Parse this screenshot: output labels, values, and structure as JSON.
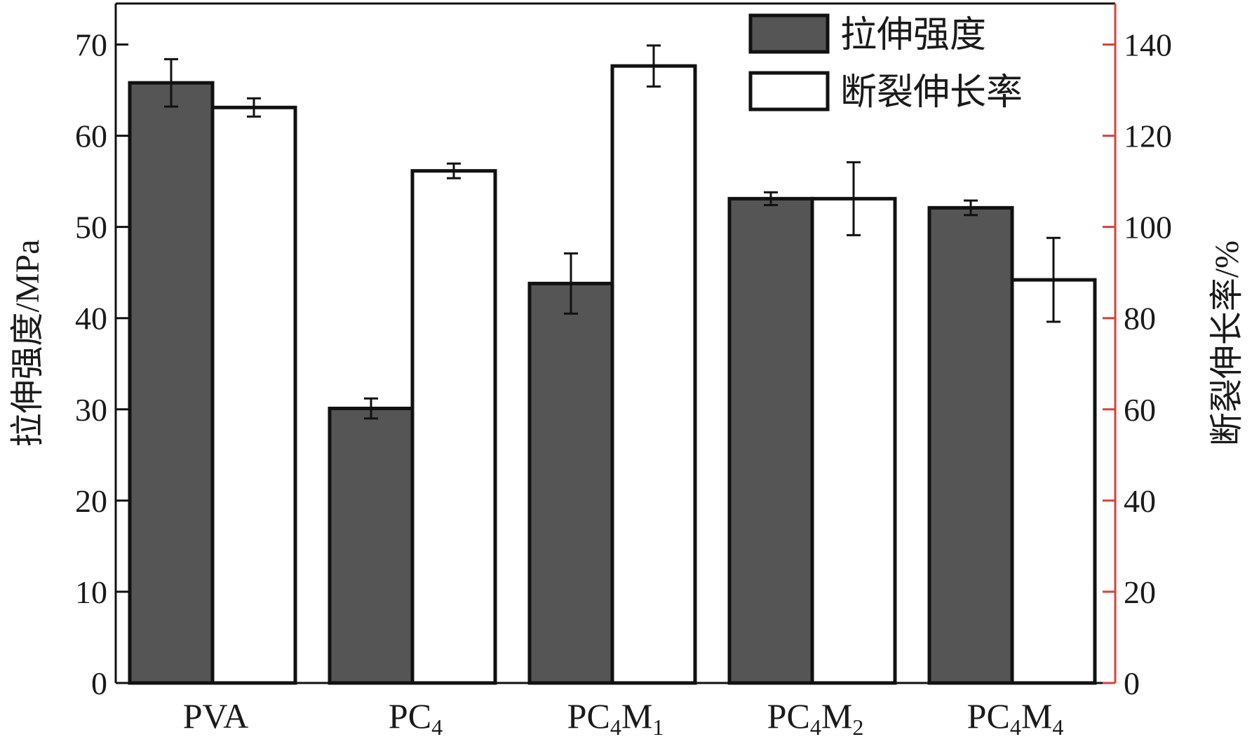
{
  "chart_data": {
    "type": "bar",
    "categories": [
      {
        "base": "PVA",
        "parts": [
          {
            "text": "PVA",
            "sub": false
          }
        ]
      },
      {
        "base": "PC4",
        "parts": [
          {
            "text": "PC",
            "sub": false
          },
          {
            "text": "4",
            "sub": true
          }
        ]
      },
      {
        "base": "PC4M1",
        "parts": [
          {
            "text": "PC",
            "sub": false
          },
          {
            "text": "4",
            "sub": true
          },
          {
            "text": "M",
            "sub": false
          },
          {
            "text": "1",
            "sub": true
          }
        ]
      },
      {
        "base": "PC4M2",
        "parts": [
          {
            "text": "PC",
            "sub": false
          },
          {
            "text": "4",
            "sub": true
          },
          {
            "text": "M",
            "sub": false
          },
          {
            "text": "2",
            "sub": true
          }
        ]
      },
      {
        "base": "PC4M4",
        "parts": [
          {
            "text": "PC",
            "sub": false
          },
          {
            "text": "4",
            "sub": true
          },
          {
            "text": "M",
            "sub": false
          },
          {
            "text": "4",
            "sub": true
          }
        ]
      }
    ],
    "series": [
      {
        "name": "拉伸强度",
        "axis": "left",
        "fill": "#555555",
        "values": [
          65.8,
          30.1,
          43.8,
          53.1,
          52.1
        ],
        "errors": [
          2.6,
          1.1,
          3.3,
          0.7,
          0.8
        ]
      },
      {
        "name": "断裂伸长率",
        "axis": "right",
        "fill": "#ffffff",
        "values": [
          126.2,
          112.3,
          135.3,
          106.2,
          88.4
        ],
        "errors": [
          2.0,
          1.6,
          4.5,
          8.0,
          9.2
        ]
      }
    ],
    "y_left": {
      "label": "拉伸强度/MPa",
      "range": [
        0,
        74.5
      ],
      "ticks": [
        0,
        10,
        20,
        30,
        40,
        50,
        60,
        70
      ]
    },
    "y_right": {
      "label": "断裂伸长率/%",
      "range": [
        0,
        149
      ],
      "ticks": [
        0,
        20,
        40,
        60,
        80,
        100,
        120,
        140
      ],
      "color": "#d9413a"
    },
    "legend_position": "top-right",
    "grid": false
  }
}
